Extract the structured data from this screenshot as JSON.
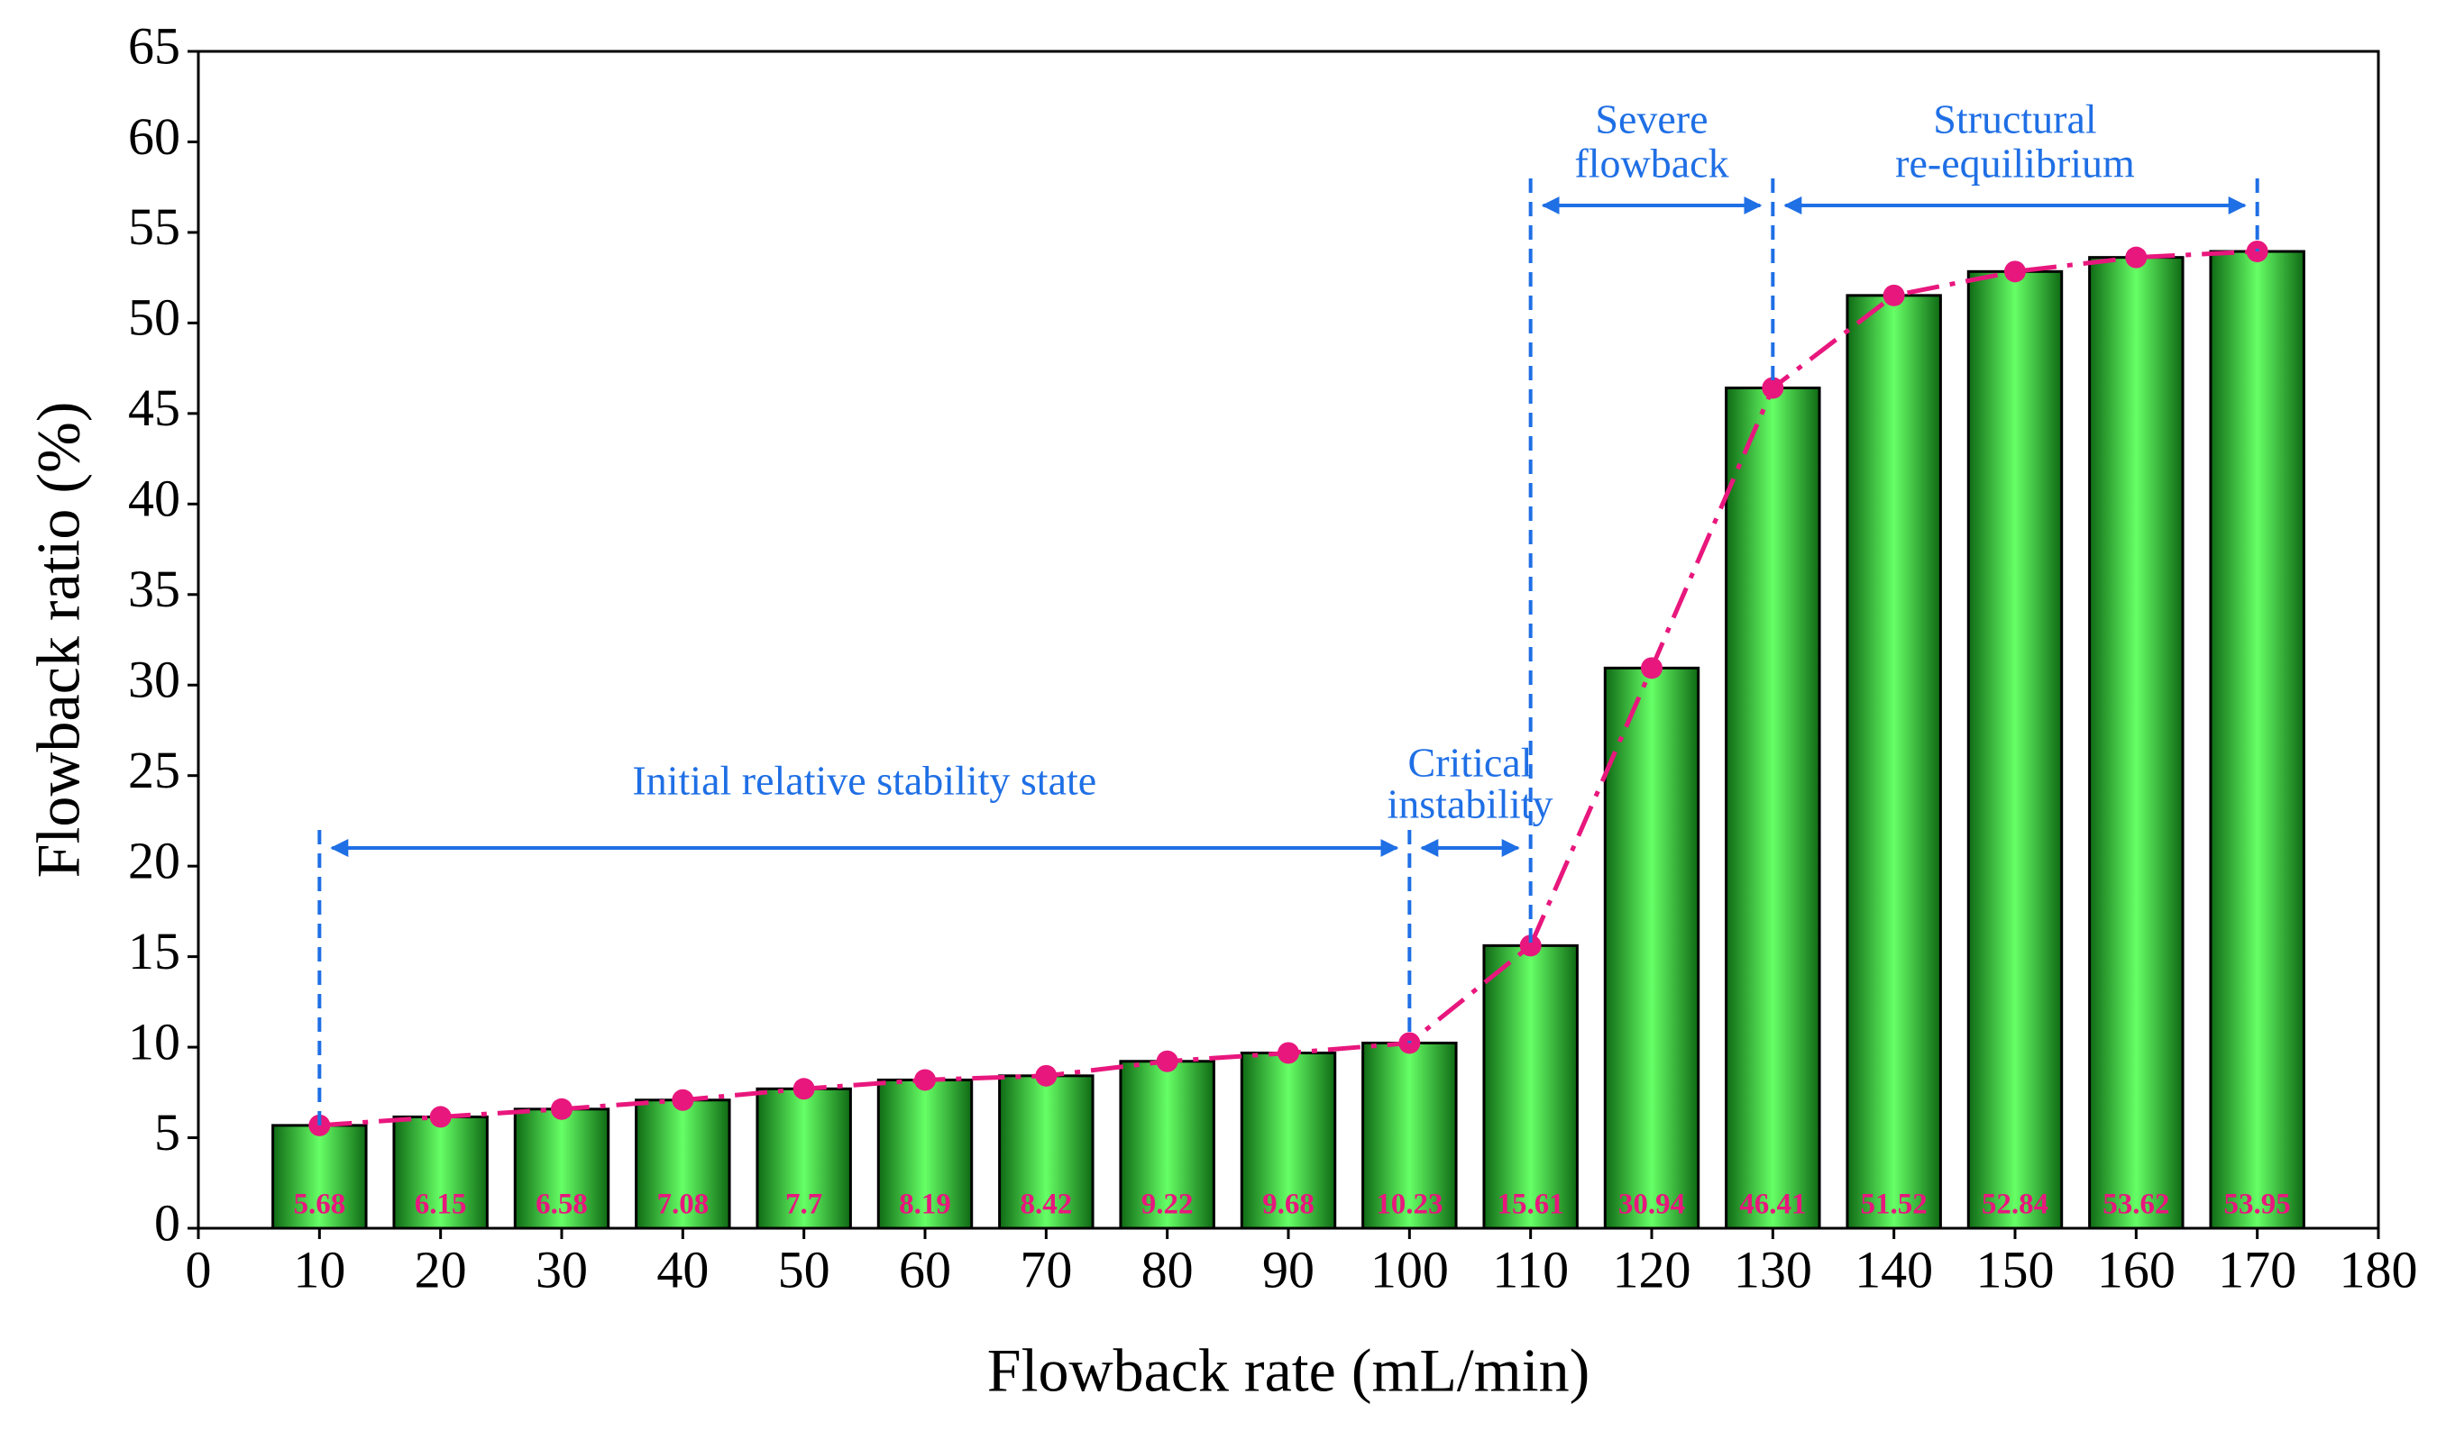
{
  "chart_data": {
    "type": "bar",
    "x_label": "Flowback rate (mL/min)",
    "y_label": "Flowback ratio (%)",
    "x": [
      10,
      20,
      30,
      40,
      50,
      60,
      70,
      80,
      90,
      100,
      110,
      120,
      130,
      140,
      150,
      160,
      170
    ],
    "values": [
      5.68,
      6.15,
      6.58,
      7.08,
      7.7,
      8.19,
      8.42,
      9.22,
      9.68,
      10.23,
      15.61,
      30.94,
      46.41,
      51.52,
      52.84,
      53.62,
      53.95
    ],
    "bar_color": "#66ff66",
    "line_color": "#e8177d",
    "annotation_color": "#1f6fe5",
    "xlim": [
      0,
      180
    ],
    "xticks": [
      0,
      10,
      20,
      30,
      40,
      50,
      60,
      70,
      80,
      90,
      100,
      110,
      120,
      130,
      140,
      150,
      160,
      170,
      180
    ],
    "ylim": [
      0,
      65
    ],
    "yticks": [
      0,
      5,
      10,
      15,
      20,
      25,
      30,
      35,
      40,
      45,
      50,
      55,
      60,
      65
    ],
    "grid": false,
    "stages": [
      {
        "label": [
          "Initial relative stability state"
        ],
        "from": 10,
        "to": 100
      },
      {
        "label": [
          "Critical",
          "instability"
        ],
        "from": 100,
        "to": 110
      },
      {
        "label": [
          "Severe",
          "flowback"
        ],
        "from": 110,
        "to": 130
      },
      {
        "label": [
          "Structural",
          "re-equilibrium"
        ],
        "from": 130,
        "to": 170
      }
    ]
  }
}
